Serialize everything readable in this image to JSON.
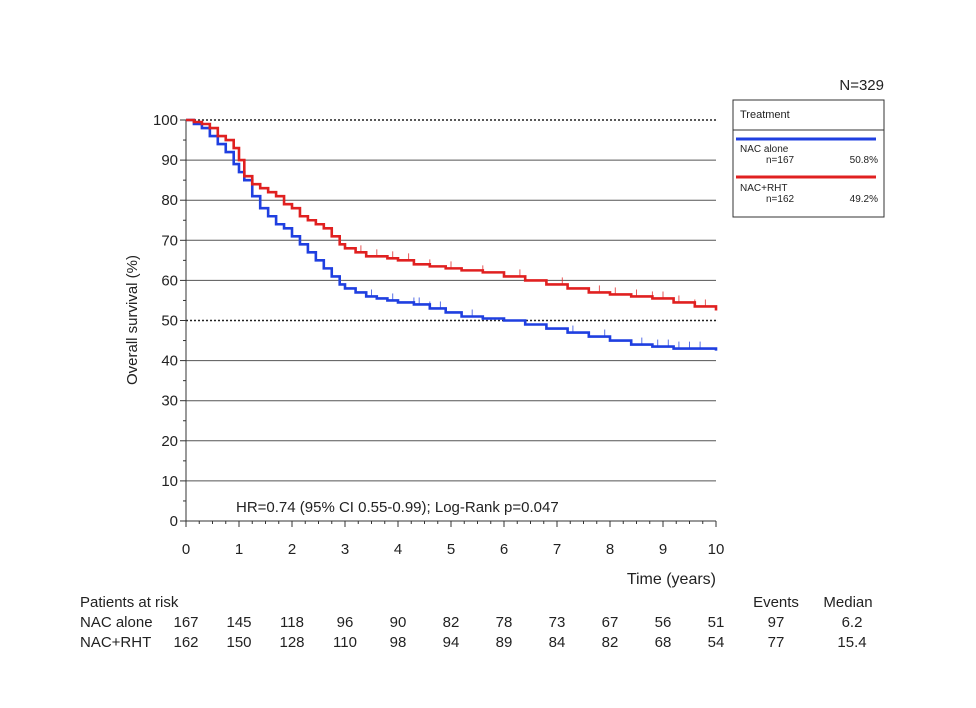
{
  "chart_data": {
    "type": "line",
    "title": "",
    "n_label": "N=329",
    "xlabel": "Time (years)",
    "ylabel": "Overall survival (%)",
    "xlim": [
      0,
      10
    ],
    "ylim": [
      0,
      100
    ],
    "x_ticks": [
      "0",
      "1",
      "2",
      "3",
      "4",
      "5",
      "6",
      "7",
      "8",
      "9",
      "10"
    ],
    "y_ticks": [
      "0",
      "10",
      "20",
      "30",
      "40",
      "50",
      "60",
      "70",
      "80",
      "90",
      "100"
    ],
    "grid": "horizontal",
    "reference_lines": [
      50,
      100
    ],
    "annotation": "HR=0.74 (95% CI 0.55-0.99); Log-Rank p=0.047",
    "legend": {
      "title": "Treatment",
      "placement": "top-right",
      "entries": [
        {
          "label": "NAC alone",
          "n": "n=167",
          "pct": "50.8%",
          "color": "#1f3fe0"
        },
        {
          "label": "NAC+RHT",
          "n": "n=162",
          "pct": "49.2%",
          "color": "#e02020"
        }
      ]
    },
    "series": [
      {
        "name": "NAC alone",
        "color": "#1f3fe0",
        "x": [
          0,
          0.15,
          0.3,
          0.45,
          0.6,
          0.75,
          0.9,
          1.0,
          1.1,
          1.25,
          1.4,
          1.55,
          1.7,
          1.85,
          2.0,
          2.15,
          2.3,
          2.45,
          2.6,
          2.75,
          2.9,
          3.0,
          3.2,
          3.4,
          3.6,
          3.8,
          4.0,
          4.3,
          4.6,
          4.9,
          5.2,
          5.6,
          6.0,
          6.4,
          6.8,
          7.2,
          7.6,
          8.0,
          8.4,
          8.8,
          9.2,
          9.6,
          10.0
        ],
        "y": [
          100,
          99,
          98,
          96,
          94,
          92,
          89,
          87,
          85,
          81,
          78,
          76,
          74,
          73,
          71,
          69,
          67,
          65,
          63,
          61,
          59,
          58,
          57,
          56,
          55.5,
          55,
          54.5,
          54,
          53,
          52,
          51,
          50.5,
          50,
          49,
          48,
          47,
          46,
          45,
          44,
          43.5,
          43,
          43,
          42.5
        ],
        "censor_x": [
          3.5,
          3.9,
          4.3,
          4.4,
          4.6,
          4.8,
          5.4,
          7.3,
          7.9,
          8.6,
          8.9,
          9.1,
          9.3,
          9.5,
          9.7
        ]
      },
      {
        "name": "NAC+RHT",
        "color": "#e02020",
        "x": [
          0,
          0.15,
          0.3,
          0.45,
          0.6,
          0.75,
          0.9,
          1.0,
          1.1,
          1.25,
          1.4,
          1.55,
          1.7,
          1.85,
          2.0,
          2.15,
          2.3,
          2.45,
          2.6,
          2.75,
          2.9,
          3.0,
          3.2,
          3.4,
          3.6,
          3.8,
          4.0,
          4.3,
          4.6,
          4.9,
          5.2,
          5.6,
          6.0,
          6.4,
          6.8,
          7.2,
          7.6,
          8.0,
          8.4,
          8.8,
          9.2,
          9.6,
          10.0
        ],
        "y": [
          100,
          99.5,
          99,
          98,
          96,
          95,
          93,
          90,
          86,
          84,
          83,
          82,
          81,
          79,
          78,
          76,
          75,
          74,
          73,
          71,
          69,
          68,
          67,
          66,
          66,
          65.5,
          65,
          64,
          63.5,
          63,
          62.5,
          62,
          61,
          60,
          59,
          58,
          57,
          56.5,
          56,
          55.5,
          54.5,
          53.5,
          52.5
        ],
        "censor_x": [
          3.3,
          3.6,
          3.9,
          4.2,
          4.6,
          5.0,
          5.6,
          6.3,
          7.1,
          7.8,
          8.1,
          8.5,
          8.8,
          9.0,
          9.3,
          9.6,
          9.8
        ]
      }
    ],
    "risk_table": {
      "title": "Patients at risk",
      "events_label": "Events",
      "median_label": "Median",
      "rows": [
        {
          "name": "NAC alone",
          "values": [
            "167",
            "145",
            "118",
            "96",
            "90",
            "82",
            "78",
            "73",
            "67",
            "56",
            "51"
          ],
          "events": "97",
          "median": "6.2"
        },
        {
          "name": "NAC+RHT",
          "values": [
            "162",
            "150",
            "128",
            "110",
            "98",
            "94",
            "89",
            "84",
            "82",
            "68",
            "54"
          ],
          "events": "77",
          "median": "15.4"
        }
      ]
    }
  }
}
